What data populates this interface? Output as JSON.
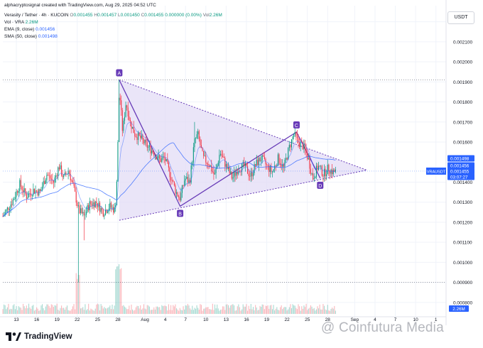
{
  "header": {
    "created_by": "alphacryptosignal created with TradingView.com, Aug 29, 2025 04:52 UTC",
    "symbol": "Verasity / Tether · 4h · KUCOIN",
    "ohlc": {
      "open_label": "O",
      "open": "0.001455",
      "high_label": "H",
      "high": "0.001457",
      "low_label": "L",
      "low": "0.001450",
      "close_label": "C",
      "close": "0.001455",
      "change": "0.000000 (0.00%)",
      "vol_label": "Vol",
      "vol": "2.26M"
    },
    "vol_indicator": {
      "label": "Vol · VRA",
      "value": "2.26M"
    },
    "ema": {
      "label": "EMA (9, close)",
      "value": "0.001456"
    },
    "sma": {
      "label": "SMA (50, close)",
      "value": "0.001498"
    }
  },
  "currency": "USDT",
  "colors": {
    "up": "#089981",
    "down": "#f23645",
    "ema": "#2962ff",
    "sma": "#2962ff",
    "pattern_fill": "#e3dcf5",
    "pattern_line": "#673ab7",
    "badge": "#2962ff",
    "grid": "#f0f3fa"
  },
  "y_axis": {
    "ticks": [
      "0.002200",
      "0.002100",
      "0.002000",
      "0.001900",
      "0.001800",
      "0.001700",
      "0.001600",
      "0.001400",
      "0.001300",
      "0.001200",
      "0.001100",
      "0.001000",
      "0.000900",
      "0.000800"
    ],
    "tick_values": [
      0.0022,
      0.0021,
      0.002,
      0.0019,
      0.0018,
      0.0017,
      0.0016,
      0.0014,
      0.0013,
      0.0012,
      0.0011,
      0.001,
      0.0009,
      0.0008
    ],
    "min": 0.00075,
    "max": 0.00228
  },
  "price_badges": [
    {
      "label": "VRAUSDT",
      "value": "0.001455",
      "price": 0.001455,
      "color": "#2962ff",
      "text": "#ffffff"
    },
    {
      "label": "",
      "value": "0.001498",
      "price": 0.001498,
      "color": "#2962ff",
      "text": "#ffffff"
    },
    {
      "label": "",
      "value": "0.001456",
      "price": 0.001456,
      "color": "#2962ff",
      "text": "#ffffff"
    },
    {
      "label": "",
      "value": "03:07:27",
      "price": 0.001395,
      "color": "#2962ff",
      "text": "#ffffff"
    }
  ],
  "volume_badge": "2.26M",
  "chart_data": {
    "type": "candlestick",
    "symbol": "VRAUSDT",
    "timeframe": "4h",
    "x_ticks": [
      {
        "label": "13",
        "day": -18
      },
      {
        "label": "16",
        "day": -15
      },
      {
        "label": "19",
        "day": -12
      },
      {
        "label": "22",
        "day": -9
      },
      {
        "label": "25",
        "day": -6
      },
      {
        "label": "28",
        "day": -3
      },
      {
        "label": "Aug",
        "day": 1
      },
      {
        "label": "4",
        "day": 4
      },
      {
        "label": "7",
        "day": 7
      },
      {
        "label": "10",
        "day": 10
      },
      {
        "label": "13",
        "day": 13
      },
      {
        "label": "16",
        "day": 16
      },
      {
        "label": "19",
        "day": 19
      },
      {
        "label": "22",
        "day": 22
      },
      {
        "label": "25",
        "day": 25
      },
      {
        "label": "28",
        "day": 28
      },
      {
        "label": "Sep",
        "day": 32
      },
      {
        "label": "4",
        "day": 35
      },
      {
        "label": "7",
        "day": 38
      },
      {
        "label": "10",
        "day": 41
      },
      {
        "label": "1",
        "day": 44
      }
    ],
    "x_range": [
      -20,
      45.5
    ],
    "close_keyframes": [
      [
        -20.0,
        0.00123
      ],
      [
        -18.5,
        0.00131
      ],
      [
        -17.5,
        0.00139
      ],
      [
        -16.5,
        0.00133
      ],
      [
        -15.5,
        0.00136
      ],
      [
        -14.5,
        0.00135
      ],
      [
        -13.5,
        0.00144
      ],
      [
        -12.5,
        0.0014
      ],
      [
        -11.7,
        0.00148
      ],
      [
        -11.0,
        0.00142
      ],
      [
        -10.3,
        0.00146
      ],
      [
        -9.6,
        0.00138
      ],
      [
        -8.8,
        0.00126
      ],
      [
        -8.0,
        0.00123
      ],
      [
        -7.2,
        0.00129
      ],
      [
        -6.2,
        0.0013
      ],
      [
        -5.2,
        0.00125
      ],
      [
        -4.2,
        0.00128
      ],
      [
        -3.4,
        0.00126
      ],
      [
        -3.1,
        0.00145
      ],
      [
        -2.8,
        0.00187
      ],
      [
        -2.3,
        0.00165
      ],
      [
        -1.8,
        0.0018
      ],
      [
        -1.2,
        0.0017
      ],
      [
        -0.5,
        0.00164
      ],
      [
        0.3,
        0.00162
      ],
      [
        1.3,
        0.00158
      ],
      [
        2.3,
        0.00155
      ],
      [
        3.2,
        0.00151
      ],
      [
        3.9,
        0.00152
      ],
      [
        4.8,
        0.00143
      ],
      [
        5.6,
        0.00135
      ],
      [
        6.2,
        0.00132
      ],
      [
        6.9,
        0.00142
      ],
      [
        7.6,
        0.0014
      ],
      [
        8.3,
        0.0016
      ],
      [
        8.8,
        0.00164
      ],
      [
        9.6,
        0.00152
      ],
      [
        10.5,
        0.00149
      ],
      [
        11.3,
        0.00143
      ],
      [
        12.1,
        0.00155
      ],
      [
        13.0,
        0.00148
      ],
      [
        13.9,
        0.00142
      ],
      [
        14.8,
        0.00147
      ],
      [
        15.7,
        0.00148
      ],
      [
        16.6,
        0.00143
      ],
      [
        17.4,
        0.00149
      ],
      [
        18.2,
        0.00152
      ],
      [
        19.0,
        0.00148
      ],
      [
        19.8,
        0.00145
      ],
      [
        20.7,
        0.00152
      ],
      [
        21.5,
        0.00147
      ],
      [
        22.3,
        0.00157
      ],
      [
        23.0,
        0.00164
      ],
      [
        23.6,
        0.0016
      ],
      [
        24.4,
        0.00158
      ],
      [
        25.1,
        0.00152
      ],
      [
        25.8,
        0.00142
      ],
      [
        26.6,
        0.00148
      ],
      [
        27.4,
        0.00144
      ],
      [
        28.1,
        0.00147
      ],
      [
        28.8,
        0.00145
      ],
      [
        29.3,
        0.001455
      ]
    ],
    "wick_extremes": [
      {
        "day": -8.9,
        "low": 0.0009
      },
      {
        "day": -8.0,
        "low": 0.00111
      },
      {
        "day": -2.9,
        "high": 0.00191
      },
      {
        "day": 8.3,
        "high": 0.0017
      },
      {
        "day": 23.5,
        "high": 0.00166
      }
    ],
    "ema_value": 0.001456,
    "sma_value": 0.001498,
    "pattern": {
      "type": "symmetrical triangle (A-B-C-D)",
      "points": [
        {
          "label": "A",
          "day": -2.8,
          "price": 0.00191
        },
        {
          "label": "B",
          "day": 6.2,
          "price": 0.00128
        },
        {
          "label": "C",
          "day": 23.4,
          "price": 0.00165
        },
        {
          "label": "D",
          "day": 26.9,
          "price": 0.00142
        }
      ],
      "upper_line": [
        {
          "day": -2.8,
          "price": 0.00191
        },
        {
          "day": 33.8,
          "price": 0.00146
        }
      ],
      "lower_line": [
        {
          "day": -2.8,
          "price": 0.00121
        },
        {
          "day": 33.8,
          "price": 0.00146
        }
      ],
      "horizontal_line": {
        "price": 0.00191
      }
    }
  }
}
